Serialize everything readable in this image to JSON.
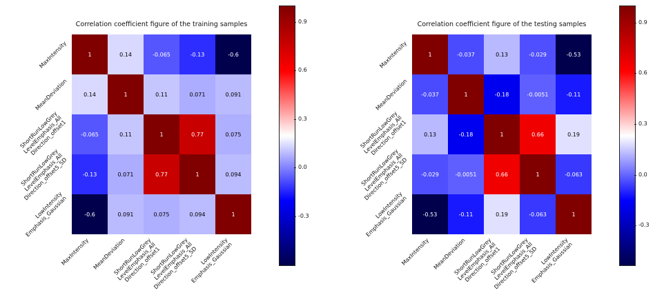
{
  "page": {
    "background": "#ffffff"
  },
  "chart_data": [
    {
      "type": "heatmap",
      "title": "Correlation coefficient figure of the training samples",
      "labels": [
        "MaxIntensity",
        "MeanDeviation",
        "ShortRunLowGrey\nLevelEmphasis_All\nDirection_offset1",
        "ShortRunLowGrey\nLevelEmphasis_All\nDirection_offset5_SD",
        "LowIntensity\nEmphasis_Gaussian"
      ],
      "matrix": [
        [
          1,
          0.14,
          -0.065,
          -0.13,
          -0.6
        ],
        [
          0.14,
          1,
          0.11,
          0.071,
          0.091
        ],
        [
          -0.065,
          0.11,
          1,
          0.77,
          0.075
        ],
        [
          -0.13,
          0.071,
          0.77,
          1,
          0.094
        ],
        [
          -0.6,
          0.091,
          0.075,
          0.094,
          1
        ]
      ],
      "vmin": -0.6,
      "vmax": 1.0,
      "colorbar_ticks": [
        0.9,
        0.6,
        0.3,
        0.0,
        -0.3
      ],
      "colormap": "seismic",
      "legend_position": "right-colorbar",
      "grid": false
    },
    {
      "type": "heatmap",
      "title": "Correlation coefficient figure of the testing samples",
      "labels": [
        "MaxIntensity",
        "MeanDeviation",
        "ShortRunLowGrey\nLevelEmphasis_All\nDirection_offset1",
        "ShortRunLowGrey\nLevelEmphasis_All\nDirection_offset5_SD",
        "LowIntensity\nEmphasis_Gaussian"
      ],
      "matrix": [
        [
          1,
          -0.037,
          0.13,
          -0.029,
          -0.53
        ],
        [
          -0.037,
          1,
          -0.18,
          -0.0051,
          -0.11
        ],
        [
          0.13,
          -0.18,
          1,
          0.66,
          0.19
        ],
        [
          -0.029,
          -0.0051,
          0.66,
          1,
          -0.063
        ],
        [
          -0.53,
          -0.11,
          0.19,
          -0.063,
          1
        ]
      ],
      "vmin": -0.53,
      "vmax": 1.0,
      "colorbar_ticks": [
        0.9,
        0.6,
        0.3,
        0.0,
        -0.3
      ],
      "colormap": "seismic",
      "legend_position": "right-colorbar",
      "grid": false
    }
  ]
}
